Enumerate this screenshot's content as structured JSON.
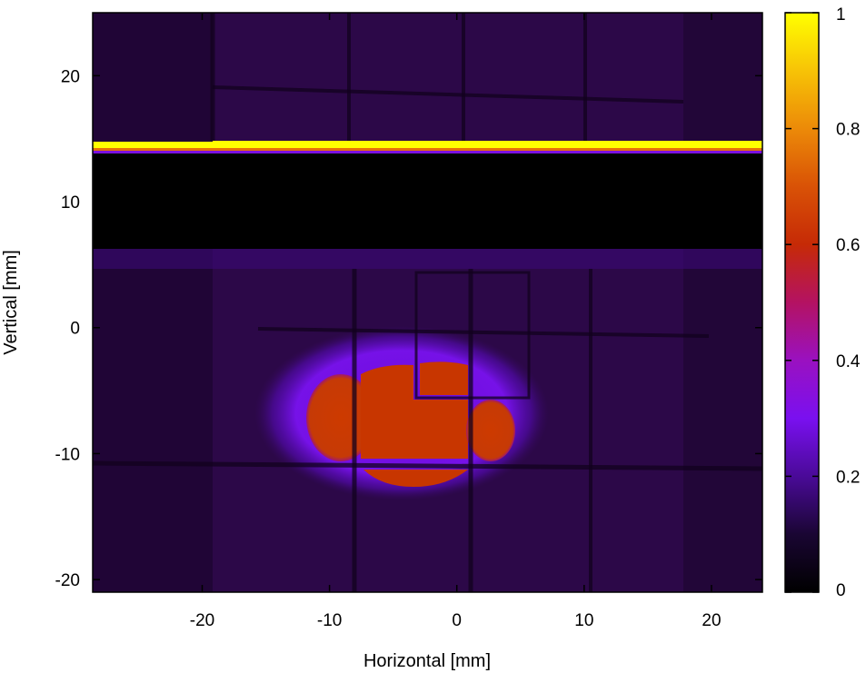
{
  "chart_data": {
    "type": "heatmap",
    "title": "",
    "xlabel": "Horizontal [mm]",
    "ylabel": "Vertical [mm]",
    "xlim": [
      -28.6,
      24
    ],
    "ylim": [
      -21,
      25
    ],
    "xticks": [
      -20,
      -10,
      0,
      10,
      20
    ],
    "xtick_labels": [
      "-20",
      "-10",
      "0",
      "10",
      "20"
    ],
    "yticks": [
      20,
      10,
      0,
      -10,
      -20
    ],
    "ytick_labels": [
      "20",
      "10",
      "0",
      "-10",
      "-20"
    ],
    "colorbar": {
      "range": [
        0,
        1
      ],
      "ticks": [
        0,
        0.2,
        0.4,
        0.6,
        0.8,
        1
      ],
      "tick_labels": [
        "0",
        "0.2",
        "0.4",
        "0.6",
        "0.8",
        "1"
      ],
      "colormap": [
        "#000000",
        "#1a0633",
        "#3d0a7a",
        "#6a0ad8",
        "#8b11f0",
        "#a7118e",
        "#c62a06",
        "#e6700a",
        "#f2a407",
        "#ffff00"
      ]
    },
    "features": {
      "background_level": 0.07,
      "bright_stripe": {
        "y_from": 13.8,
        "y_to": 14.6,
        "value": 1.0
      },
      "dark_band": {
        "y_from": 6.2,
        "y_to": 13.8,
        "value": 0.0
      },
      "beam_spot": {
        "x_center": -4.5,
        "y_center": -7.2,
        "x_halfwidth": 11.5,
        "y_halfwidth": 5.8,
        "value": 0.58
      },
      "vertical_gridlines_x": [
        -8.5,
        0.7,
        10,
        -19.5
      ],
      "horizontal_gridlines_y": [
        -10.8,
        0,
        19
      ]
    }
  }
}
